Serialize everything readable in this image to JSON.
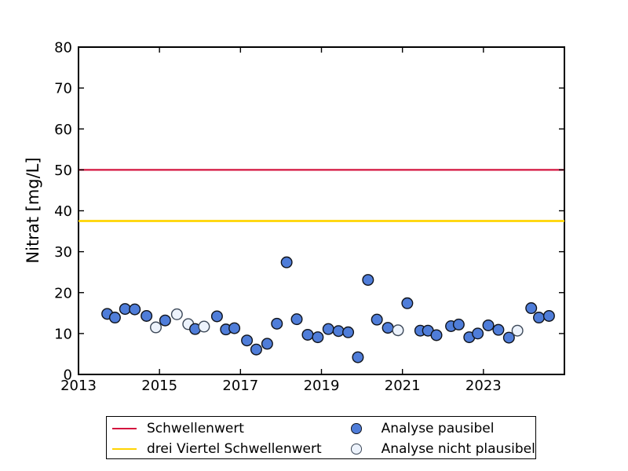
{
  "chart_data": {
    "type": "scatter",
    "title": "",
    "xlabel": "",
    "ylabel": "Nitrat [mg/L]",
    "xlim": [
      2013,
      2025
    ],
    "ylim": [
      0,
      80
    ],
    "x_ticks": [
      2013,
      2015,
      2017,
      2019,
      2021,
      2023
    ],
    "y_ticks": [
      0,
      10,
      20,
      30,
      40,
      50,
      60,
      70,
      80
    ],
    "grid": false,
    "tick_direction": "in",
    "legend_position": "bottom-center-outside",
    "threshold_lines": [
      {
        "name": "Schwellenwert",
        "value": 50,
        "color": "#d4143f"
      },
      {
        "name": "drei Viertel Schwellenwert",
        "value": 37.5,
        "color": "#ffd402"
      }
    ],
    "series": [
      {
        "name": "Analyse pausibel",
        "marker": "filled-circle",
        "fill": "#4f7dd9",
        "edge": "#10131a",
        "points": [
          [
            2013.71,
            14.8
          ],
          [
            2013.9,
            13.9
          ],
          [
            2014.15,
            16.0
          ],
          [
            2014.39,
            15.9
          ],
          [
            2014.68,
            14.3
          ],
          [
            2015.14,
            13.2
          ],
          [
            2015.88,
            11.1
          ],
          [
            2016.42,
            14.2
          ],
          [
            2016.64,
            11.0
          ],
          [
            2016.85,
            11.3
          ],
          [
            2017.16,
            8.3
          ],
          [
            2017.39,
            6.1
          ],
          [
            2017.66,
            7.5
          ],
          [
            2017.9,
            12.4
          ],
          [
            2018.14,
            27.4
          ],
          [
            2018.39,
            13.5
          ],
          [
            2018.66,
            9.7
          ],
          [
            2018.91,
            9.1
          ],
          [
            2019.17,
            11.1
          ],
          [
            2019.42,
            10.6
          ],
          [
            2019.66,
            10.3
          ],
          [
            2019.9,
            4.2
          ],
          [
            2020.15,
            23.1
          ],
          [
            2020.37,
            13.4
          ],
          [
            2020.64,
            11.4
          ],
          [
            2021.12,
            17.4
          ],
          [
            2021.44,
            10.7
          ],
          [
            2021.63,
            10.7
          ],
          [
            2021.84,
            9.6
          ],
          [
            2022.2,
            11.8
          ],
          [
            2022.39,
            12.2
          ],
          [
            2022.65,
            9.1
          ],
          [
            2022.86,
            10.0
          ],
          [
            2023.12,
            12.0
          ],
          [
            2023.37,
            10.9
          ],
          [
            2023.63,
            9.0
          ],
          [
            2024.18,
            16.2
          ],
          [
            2024.37,
            13.9
          ],
          [
            2024.62,
            14.3
          ]
        ]
      },
      {
        "name": "Analyse nicht plausibel",
        "marker": "open-circle",
        "fill": "#edf3fc",
        "edge": "#3c4858",
        "points": [
          [
            2014.91,
            11.5
          ],
          [
            2015.43,
            14.7
          ],
          [
            2015.71,
            12.3
          ],
          [
            2016.1,
            11.7
          ],
          [
            2020.89,
            10.8
          ],
          [
            2023.84,
            10.7
          ]
        ]
      }
    ]
  },
  "legend": {
    "items": [
      {
        "label": "Schwellenwert",
        "swatch": "line"
      },
      {
        "label": "drei Viertel Schwellenwert",
        "swatch": "line"
      },
      {
        "label": "Analyse pausibel",
        "swatch": "filled-circle"
      },
      {
        "label": "Analyse nicht plausibel",
        "swatch": "open-circle"
      }
    ]
  }
}
